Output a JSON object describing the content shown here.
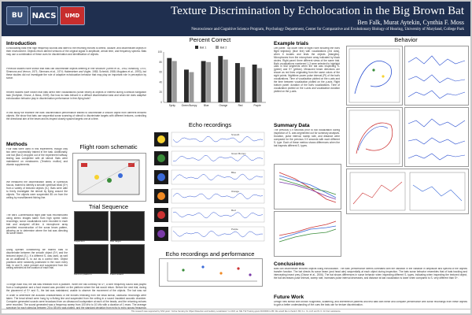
{
  "header": {
    "logos": [
      "BU",
      "NACS",
      "UMD"
    ],
    "title": "Texture Discrimination by Echolocation in the Big Brown Bat",
    "authors": "Ben Falk, Murat Aytekin, Cynthia F. Moss",
    "affiliation": "Neuroscience and Cognitive Science Program, Psychology Department, Center for Comparative and Evolutionary Biology of Hearing, University of Maryland, College Park"
  },
  "sections": {
    "introduction": "Introduction",
    "methods": "Methods",
    "flight_room": "Flight room schematic",
    "trial_sequence": "Trial Sequence",
    "percent_correct": "Percent Correct",
    "echo_recordings": "Echo recordings",
    "echo_perf": "Echo recordings and performance",
    "behavior": "Behavior",
    "example_trials": "Example trials",
    "summary_data": "Summary Data",
    "conclusions": "Conclusions",
    "future_work": "Future Work"
  },
  "text": {
    "intro_p1": "Echolocating bats emit high frequency sounds and listen to the returning echoes to detect, localize, and discriminate objects in their environment. Objects return altered versions of the original signal in amplitude, arrival time, and frequency spectra. Bats may use a combination of these cues for discrimination and identification of objects.",
    "intro_p2": "Previous studies have shown that bats can discriminate objects differing in fine structure (Griffin et al., 1962; Bradbury, 1970; Simmons and Vernon, 1971; Simmons et al., 1974; Habersetzer and Vogler, 1983; Schmidt, 1988; Mogdans et al., 1993), but these studies did not investigate the role of adaptive echolocation behavior that may play an important role in perception by sonar.",
    "intro_p3": "Recent studies have shown that bats direct their vocalizations (sonar beam) at objects of interest during a difficult navigation task (Surlykke, Ghose, & Moss, 2009). But how do bats behave in a difficult discrimination task and what role does adaptive echolocation behavior play in discrimination performance in free-flying bats?",
    "intro_p4": "In this study we examine the bats' discrimination performance trained to discriminate a smooth object from different textured objects. We show that bats use sequential sonar scanning of stimuli to discriminate targets with different textures, controlling the directional aim of the beam and its inspect closely spaced targets one at a time.",
    "methods_p1": "Four bats were used in this experiment, though only two were successfully trained in the task. Additionally, one bat (Bat 2) dropped out of the experiment halfway, testing was completed with all stimuli. Bats were maintained on mealworms (Tenebrio molitor) and vitamin supplements.",
    "methods_p2": "We measured the discrimination ability of Eptesicus fuscus, trained to identify a smooth spherical bead (S+) from a variety of textured objects (S-). Bats were able to freely investigate the stimuli by flying around the objects. The objects were suspended 85 cm from the ceiling by monofilament fishing line.",
    "methods_p3": "The bat's 3-dimensional flight path was reconstructed using stereo images taken from high speed video recordings; sonar vocalizations were recorded in each trial and analyzed off-line. A microphone array permitted reconstruction of the sonar beam pattern, allowing us to determine where the bat was directing its sonar beam.",
    "methods_p4": "Using operant conditioning we trained bats to discriminate between the smooth object (S+) and the textured object (S-). If a different S- was used, as well as an additional S- to act as a control item. Object positions were randomly positioned in the room every trial. In and S- were present and suspended from the ceiling selected at the location of each trial.",
    "methods_p5": "To begin each trial, the bat was released from a platform. When the bat correctly hit S+, a tone frequency sound was played from a loudspeaker and a food reward was provided on the platform where the bat would return. Before the next trial, during the placement of S+ and S-, the bat was maintained, unable to observe the movement of the objects. The bat was not restrained in its flight path.",
    "methods_p6": "In order to determine the acoustic characteristics of the echoes reflecting from the bead stimuli, ultrasonic recordings were taken. The bead stimuli were hung by a fishing line and suspended from the ceiling in a sound insulated acoustic chamber. Computer generated sounds were broadcast from an ultrasound loudspeaker at each of the beads, and the returning echoes were recorded. The sound generated was a frequency sweep from 100 kHz to 10 kHz with a duration of 1 msec. The average spectrum for each stimulus between 25 to 85 kHz was plotted, and the standard deviation from echo to echo across frequency was represented in the thickness of the lines.",
    "example_p1": "Left panel: Top down view of flight room showing the bat's flight trajectory (blue line) with vocalizations (red dots), when it locates and tests the objects (triangles). Microphones from the microphone array indicated by black circles. Right panel: three different views of the same trial. Bat's vocalizations numbered 1-3 were selected to highlight calls in trial segments when the bat was inspecting S- (green) and S+ (yellow). Measured beam directions are shown as red lines originating from the same colors of the sight points. Nighttime power pulse interval (PI) of the bat's vocalizations. Time of vocalization plotted on the x-axis and the time between vocalization plotted on the y-axis. Right bottom panel: duration of the bat's vocalizations. Time of vocalization plotted on the x-axis and vocalization duration plotted on the y-axis.",
    "summary_p1": "The previous 0.9 seconds prior to bat vocalization during inspection of S- was segmented out for summary analyses. Duration, pulse interval, sweep rate, and distance were compared for the previous 0.9 seconds with each different S- type. Each of these metrics shows differences when the bat inspects different S- types.",
    "conclusions_p1": "Bats can discriminate textured objects using echolocation. The bats' performance seems correlated with the variation in the variation in amplitude and spectra of the objects transfer function. The bat directs its sonar beam (and head aim) sequentially at each object during inspection. The bats sonar behavior resembles that of bats tracking and intercepting insect prey (Ghose et al., 2006). The bat shows differences in sonar behavior when inspecting different S- types, indicating when inspecting the textured object, the bat decreases pulse interval, sweep rate, increases pulse interval decreases, and distance at last vocalization is lower when compared to S- very different than S+.",
    "future_p1": "Design new stimuli with known roughness, scattering, and interference patterns and test bats with these and compare performance with sonar recordings from these objects to gain a better understanding of the cues the bats use for texture discrimination.",
    "footer": "This research was supported by NSF grant: \"Active Sensing for Object Detection and Auditory Localization\" to CFM, an NIH T32 Training grant DC00046 to BF. We would like to thank F. Bif, K.L. Ye, A.M. and N. D. for their assistance."
  },
  "figure_labels": {
    "trial_seq": [
      "Inspection",
      "Bite target",
      "Land on platform",
      "Food reward"
    ],
    "echo_rows": [
      "Smooth",
      "Green Bumpy",
      "Blue",
      "Orange",
      "Red",
      "Purple"
    ]
  },
  "chart_data": [
    {
      "type": "bar",
      "title": "Percent Correct",
      "categories": [
        "Sprky",
        "Green Bumpy",
        "Blue",
        "Orange",
        "Red",
        "Purple"
      ],
      "series": [
        {
          "name": "Bat 1",
          "values": [
            88,
            65,
            82,
            92,
            78,
            75
          ]
        },
        {
          "name": "Bat 2",
          "values": [
            82,
            60,
            80,
            85,
            70,
            68
          ]
        }
      ],
      "ylim": [
        0,
        100
      ],
      "colors": [
        "#2b2b2b",
        "#9a9a9a"
      ]
    }
  ],
  "colors": {
    "header_bg": "#1f2f4f",
    "bar_dark": "#2b2b2b",
    "bar_light": "#9a9a9a"
  }
}
